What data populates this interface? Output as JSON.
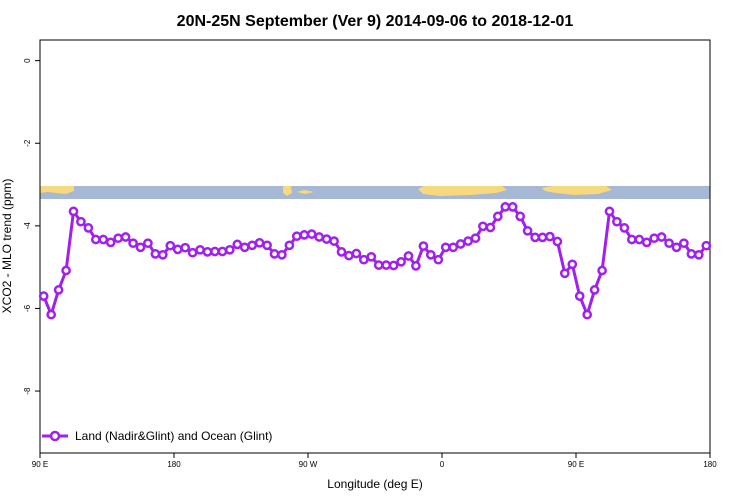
{
  "chart_data": {
    "type": "line",
    "title": "20N-25N September (Ver 9)   2014-09-06 to 2018-12-01",
    "xlabel": "Longitude (deg E)",
    "ylabel": "XCO2 - MLO trend (ppm)",
    "x_ticks": [
      {
        "value": 90,
        "label": "90 E"
      },
      {
        "value": 180,
        "label": "180"
      },
      {
        "value": 270,
        "label": "90 W"
      },
      {
        "value": 360,
        "label": "0"
      },
      {
        "value": 450,
        "label": "90 E"
      },
      {
        "value": 540,
        "label": "180"
      }
    ],
    "y_ticks": [
      0,
      -2,
      -4,
      -6,
      -8
    ],
    "xlim": [
      90,
      540
    ],
    "ylim": [
      -9.5,
      0.5
    ],
    "legend_position": "bottom-left",
    "series": [
      {
        "name": "Land (Nadir&Glint) and Ocean (Glint)",
        "color": "#a020f0",
        "x": [
          92.5,
          97.5,
          102.5,
          107.5,
          112.5,
          117.5,
          122.5,
          127.5,
          132.5,
          137.5,
          142.5,
          147.5,
          152.5,
          157.5,
          162.5,
          167.5,
          172.5,
          177.5,
          182.5,
          187.5,
          192.5,
          197.5,
          202.5,
          207.5,
          212.5,
          217.5,
          222.5,
          227.5,
          232.5,
          237.5,
          242.5,
          247.5,
          252.5,
          257.5,
          262.5,
          267.5,
          272.5,
          277.5,
          282.5,
          287.5,
          292.5,
          297.5,
          302.5,
          307.5,
          312.5,
          317.5,
          322.5,
          327.5,
          332.5,
          337.5,
          342.5,
          347.5,
          352.5,
          357.5,
          362.5,
          367.5,
          372.5,
          377.5,
          382.5,
          387.5,
          392.5,
          397.5,
          402.5,
          407.5,
          412.5,
          417.5,
          422.5,
          427.5,
          432.5,
          437.5,
          442.5,
          447.5,
          452.5,
          457.5,
          462.5,
          467.5,
          472.5,
          477.5,
          482.5,
          487.5,
          492.5,
          497.5,
          502.5,
          507.5,
          512.5,
          517.5,
          522.5,
          527.5,
          532.5,
          537.5
        ],
        "y": [
          -5.7,
          -6.15,
          -5.55,
          -5.08,
          -3.65,
          -3.9,
          -4.05,
          -4.33,
          -4.33,
          -4.4,
          -4.3,
          -4.27,
          -4.42,
          -4.52,
          -4.42,
          -4.68,
          -4.7,
          -4.48,
          -4.57,
          -4.53,
          -4.65,
          -4.58,
          -4.63,
          -4.62,
          -4.62,
          -4.58,
          -4.45,
          -4.52,
          -4.47,
          -4.41,
          -4.47,
          -4.68,
          -4.7,
          -4.47,
          -4.25,
          -4.22,
          -4.2,
          -4.27,
          -4.32,
          -4.37,
          -4.63,
          -4.72,
          -4.67,
          -4.82,
          -4.75,
          -4.95,
          -4.95,
          -4.96,
          -4.87,
          -4.73,
          -4.97,
          -4.49,
          -4.7,
          -4.82,
          -4.52,
          -4.52,
          -4.44,
          -4.37,
          -4.3,
          -4.01,
          -4.04,
          -3.77,
          -3.54,
          -3.54,
          -3.77,
          -4.12,
          -4.28,
          -4.28,
          -4.26,
          -4.38,
          -5.15,
          -4.93,
          -5.7,
          -6.15,
          -5.55,
          -5.08,
          -3.65,
          -3.9,
          -4.05,
          -4.33,
          -4.33,
          -4.4,
          -4.3,
          -4.27,
          -4.42,
          -4.52,
          -4.42,
          -4.68,
          -4.7,
          -4.48
        ]
      }
    ]
  }
}
